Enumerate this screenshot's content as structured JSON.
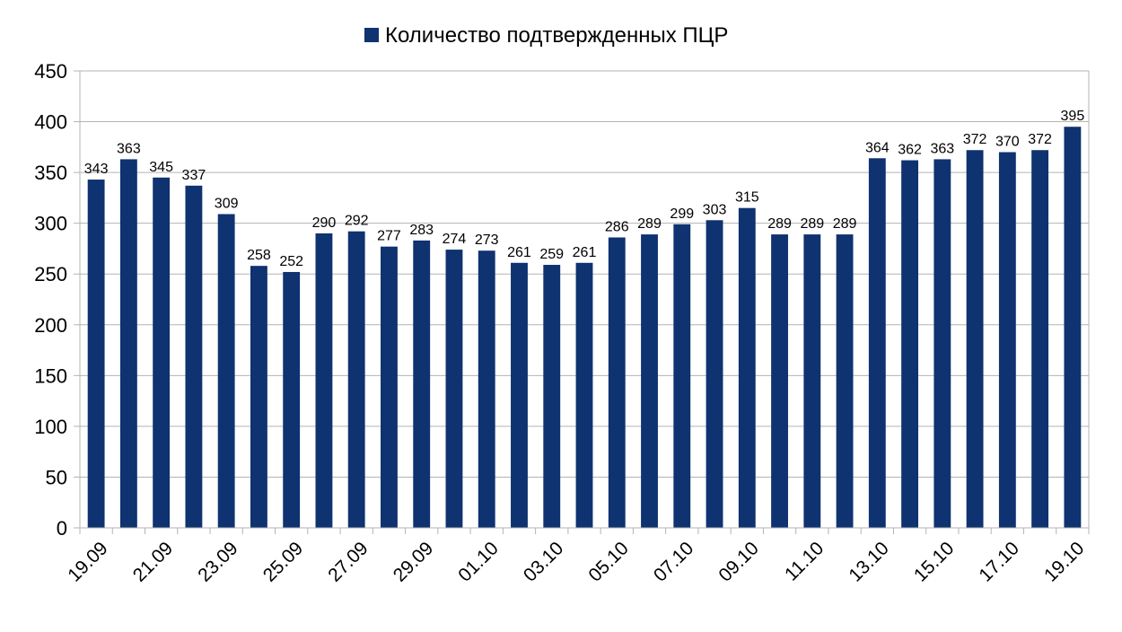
{
  "chart_data": {
    "type": "bar",
    "categories": [
      "19.09",
      "20.09",
      "21.09",
      "22.09",
      "23.09",
      "24.09",
      "25.09",
      "26.09",
      "27.09",
      "28.09",
      "29.09",
      "30.09",
      "01.10",
      "02.10",
      "03.10",
      "04.10",
      "05.10",
      "06.10",
      "07.10",
      "08.10",
      "09.10",
      "10.10",
      "11.10",
      "12.10",
      "13.10",
      "14.10",
      "15.10",
      "16.10",
      "17.10",
      "18.10",
      "19.10"
    ],
    "x_tick_labels": [
      "19.09",
      "21.09",
      "23.09",
      "25.09",
      "27.09",
      "29.09",
      "01.10",
      "03.10",
      "05.10",
      "07.10",
      "09.10",
      "11.10",
      "13.10",
      "15.10",
      "17.10",
      "19.10"
    ],
    "series": [
      {
        "name": "Количество подтвержденных ПЦР",
        "color": "#0f3270",
        "values": [
          343,
          363,
          345,
          337,
          309,
          258,
          252,
          290,
          292,
          277,
          283,
          274,
          273,
          261,
          259,
          261,
          286,
          289,
          299,
          303,
          315,
          289,
          289,
          289,
          364,
          362,
          363,
          372,
          370,
          372,
          395
        ]
      }
    ],
    "ylim": [
      0,
      450
    ],
    "yticks": [
      0,
      50,
      100,
      150,
      200,
      250,
      300,
      350,
      400,
      450
    ],
    "grid": true,
    "legend_position": "top-center",
    "title": "",
    "xlabel": "",
    "ylabel": ""
  }
}
